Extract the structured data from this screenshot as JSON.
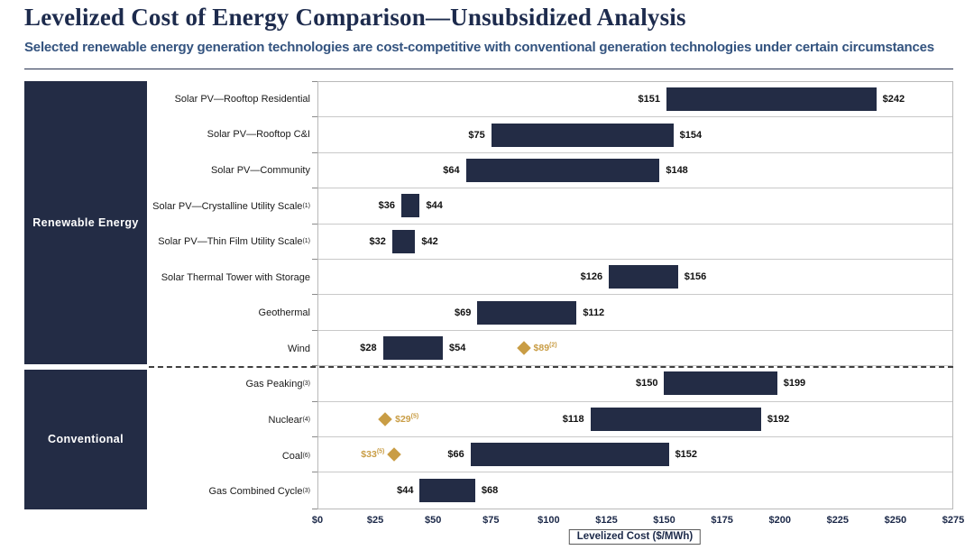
{
  "header": {
    "title": "Levelized Cost of Energy Comparison—Unsubsidized Analysis",
    "subtitle": "Selected renewable energy generation technologies are cost-competitive with conventional generation technologies under certain circumstances"
  },
  "colors": {
    "bar_navy": "#232c45",
    "diamond_gold": "#c99d45",
    "title_navy": "#1d2b4d",
    "subtitle_blue": "#33537f",
    "gridline_gray": "#c9c9c9"
  },
  "chart_data": {
    "type": "bar",
    "orientation": "horizontal_range",
    "title": "Levelized Cost of Energy Comparison—Unsubsidized Analysis",
    "xlabel": "Levelized Cost ($/MWh)",
    "xlim": [
      0,
      275
    ],
    "grid": "row-separators",
    "tick_values": [
      0,
      25,
      50,
      75,
      100,
      125,
      150,
      175,
      200,
      225,
      250,
      275
    ],
    "ticks": [
      "$0",
      "$25",
      "$50",
      "$75",
      "$100",
      "$125",
      "$150",
      "$175",
      "$200",
      "$225",
      "$250",
      "$275"
    ],
    "groups": [
      {
        "name": "Renewable Energy",
        "rows": [
          {
            "label": "Solar PV—Rooftop Residential",
            "min": 151,
            "max": 242,
            "min_label": "$151",
            "max_label": "$242"
          },
          {
            "label": "Solar PV—Rooftop C&I",
            "min": 75,
            "max": 154,
            "min_label": "$75",
            "max_label": "$154"
          },
          {
            "label": "Solar PV—Community",
            "min": 64,
            "max": 148,
            "min_label": "$64",
            "max_label": "$148"
          },
          {
            "label": "Solar PV—Crystalline Utility Scale",
            "sup": "(1)",
            "min": 36,
            "max": 44,
            "min_label": "$36",
            "max_label": "$44"
          },
          {
            "label": "Solar PV—Thin Film Utility Scale",
            "sup": "(1)",
            "min": 32,
            "max": 42,
            "min_label": "$32",
            "max_label": "$42"
          },
          {
            "label": "Solar Thermal Tower with Storage",
            "min": 126,
            "max": 156,
            "min_label": "$126",
            "max_label": "$156"
          },
          {
            "label": "Geothermal",
            "min": 69,
            "max": 112,
            "min_label": "$69",
            "max_label": "$112"
          },
          {
            "label": "Wind",
            "min": 28,
            "max": 54,
            "min_label": "$28",
            "max_label": "$54",
            "diamond": {
              "value": 89,
              "label": "$89",
              "sup": "(2)",
              "side": "right"
            }
          }
        ]
      },
      {
        "name": "Conventional",
        "rows": [
          {
            "label": "Gas Peaking",
            "sup": "(3)",
            "min": 150,
            "max": 199,
            "min_label": "$150",
            "max_label": "$199"
          },
          {
            "label": "Nuclear",
            "sup": "(4)",
            "min": 118,
            "max": 192,
            "min_label": "$118",
            "max_label": "$192",
            "diamond": {
              "value": 29,
              "label": "$29",
              "sup": "(5)",
              "side": "right"
            }
          },
          {
            "label": "Coal",
            "sup": "(6)",
            "min": 66,
            "max": 152,
            "min_label": "$66",
            "max_label": "$152",
            "diamond": {
              "value": 33,
              "label": "$33",
              "sup": "(5)",
              "side": "left"
            }
          },
          {
            "label": "Gas Combined Cycle",
            "sup": "(3)",
            "min": 44,
            "max": 68,
            "min_label": "$44",
            "max_label": "$68"
          }
        ]
      }
    ]
  }
}
